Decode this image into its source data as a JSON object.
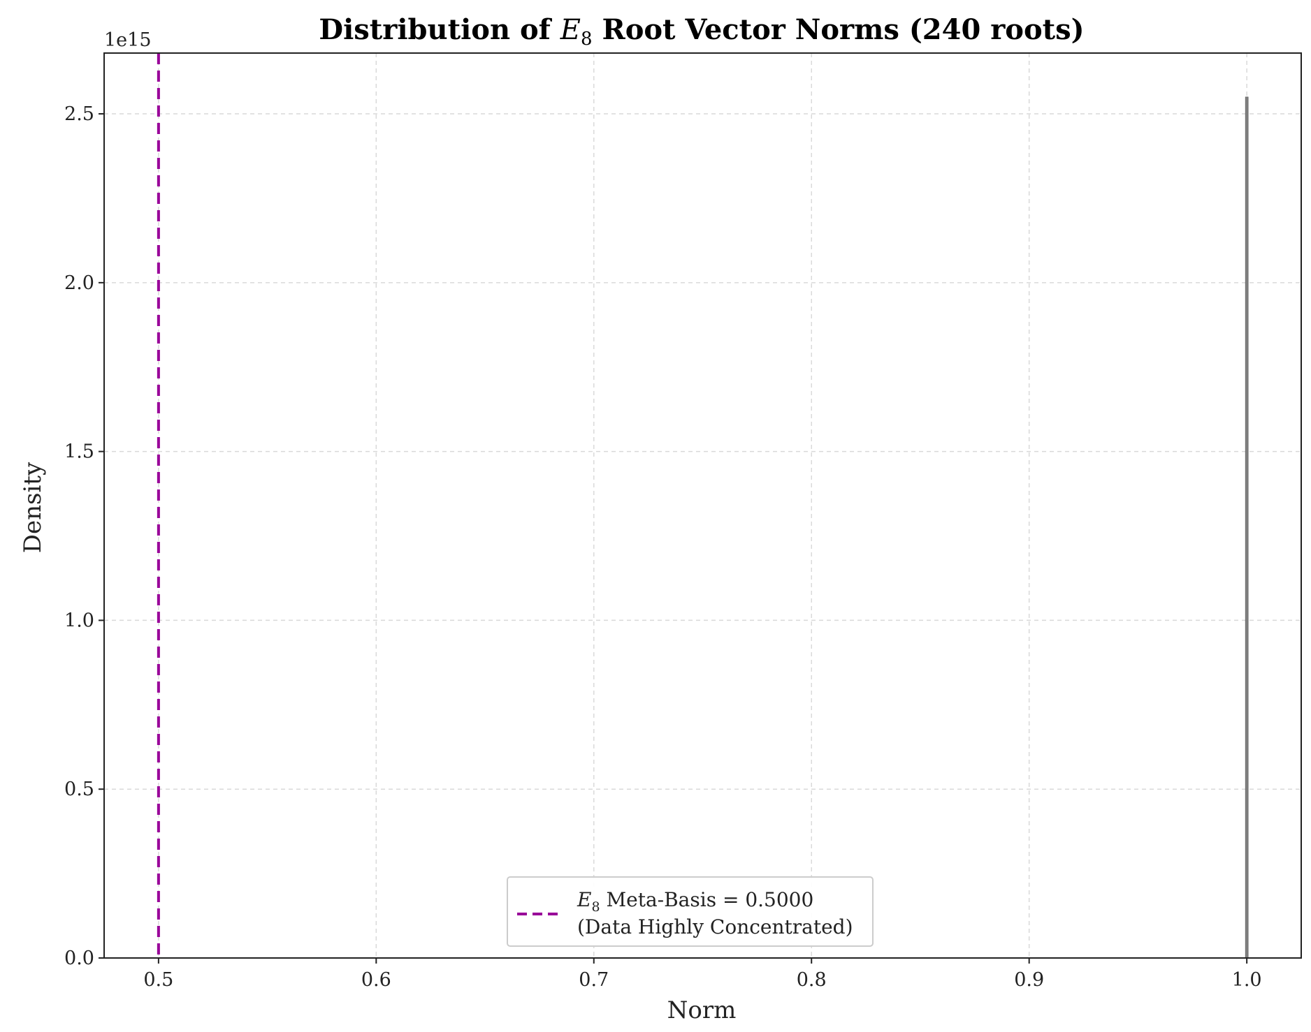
{
  "chart_data": {
    "type": "histogram",
    "title_prefix": "Distribution of ",
    "title_symbol": "E",
    "title_subscript": "8",
    "title_suffix": " Root Vector Norms (240 roots)",
    "xlabel": "Norm",
    "ylabel": "Density",
    "y_offset_label": "1e15",
    "xlim": [
      0.475,
      1.025
    ],
    "ylim": [
      0,
      2.68
    ],
    "x_ticks": [
      0.5,
      0.6,
      0.7,
      0.8,
      0.9,
      1.0
    ],
    "x_tick_labels": [
      "0.5",
      "0.6",
      "0.7",
      "0.8",
      "0.9",
      "1.0"
    ],
    "y_ticks": [
      0.0,
      0.5,
      1.0,
      1.5,
      2.0,
      2.5
    ],
    "y_tick_labels": [
      "0.0",
      "0.5",
      "1.0",
      "1.5",
      "2.0",
      "2.5"
    ],
    "grid": true,
    "bars": [
      {
        "x": 1.0,
        "density": 2.55
      }
    ],
    "reference_line": {
      "x": 0.5,
      "style": "dashed",
      "color": "#990099",
      "legend_symbol": "E",
      "legend_subscript": "8",
      "legend_line1_suffix": " Meta-Basis = 0.5000",
      "legend_line2": "(Data Highly Concentrated)"
    },
    "legend_position": "lower-center",
    "bar_color": "#808080"
  }
}
